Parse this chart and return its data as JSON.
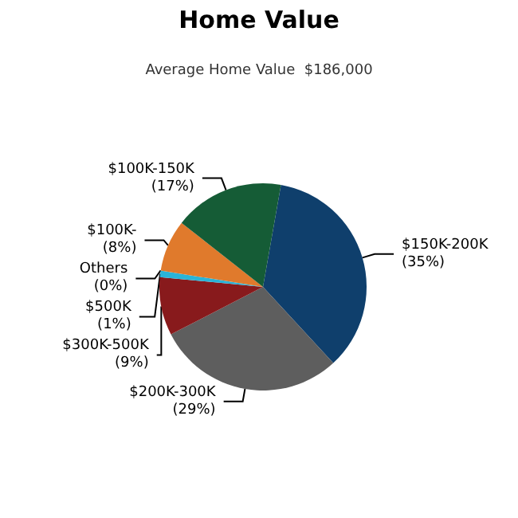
{
  "chart_data": {
    "type": "pie",
    "title": "Home Value",
    "subtitle": "Average Home Value  $186,000",
    "categories": [
      "$150K-200K",
      "$200K-300K",
      "$300K-500K",
      "$500K",
      "Others",
      "$100K-",
      "$100K-150K"
    ],
    "values": [
      35,
      29,
      9,
      1,
      0,
      8,
      17
    ],
    "value_labels": [
      "(35%)",
      "(29%)",
      "(9%)",
      "(1%)",
      "(0%)",
      "(8%)",
      "(17%)"
    ],
    "colors": [
      "#0f3f6c",
      "#5e5e5e",
      "#881a1c",
      "#2ab4d8",
      "#7a4fa0",
      "#e07a2c",
      "#155c36"
    ]
  }
}
